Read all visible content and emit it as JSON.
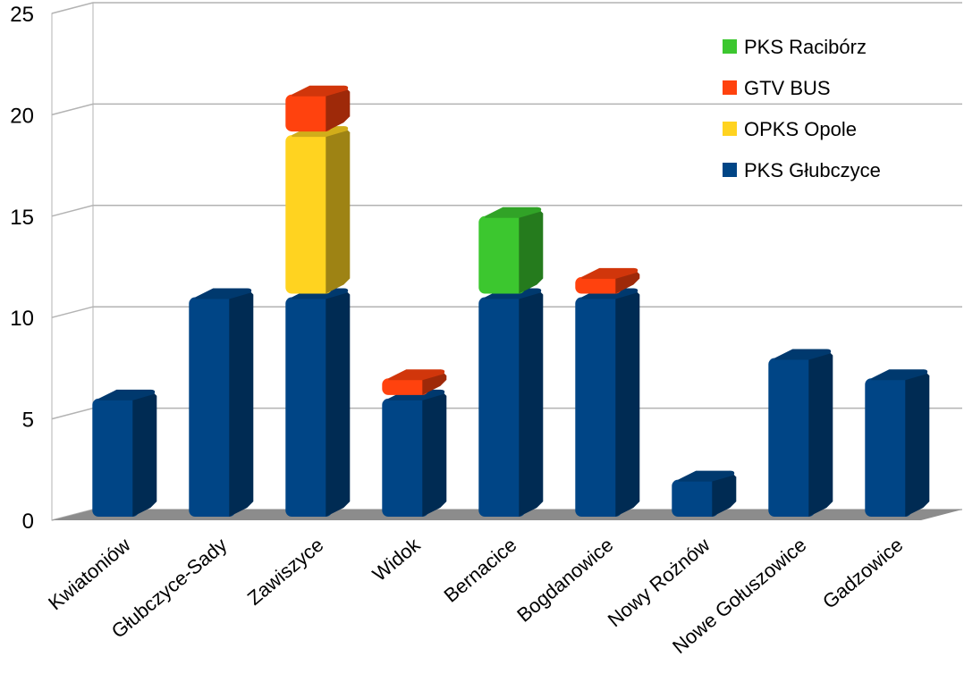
{
  "chart_data": {
    "type": "bar",
    "stacked": true,
    "three_d": true,
    "categories": [
      "Kwiatoniów",
      "Głubczyce-Sady",
      "Zawiszyce",
      "Widok",
      "Bernacice",
      "Bogdanowice",
      "Nowy Rożnów",
      "Nowe Gołuszowice",
      "Gadzowice"
    ],
    "series": [
      {
        "name": "PKS Głubczyce",
        "color": "#004586",
        "values": [
          6,
          11,
          11,
          6,
          11,
          11,
          2,
          8,
          7
        ]
      },
      {
        "name": "OPKS Opole",
        "color": "#ffd320",
        "values": [
          0,
          0,
          8,
          0,
          0,
          0,
          0,
          0,
          0
        ]
      },
      {
        "name": "GTV BUS",
        "color": "#ff420e",
        "values": [
          0,
          0,
          2,
          1,
          0,
          1,
          0,
          0,
          0
        ]
      },
      {
        "name": "PKS Racibórz",
        "color": "#3cc72f",
        "values": [
          0,
          0,
          0,
          0,
          4,
          0,
          0,
          0,
          0
        ]
      }
    ],
    "yticks": [
      "0",
      "5",
      "10",
      "15",
      "20",
      "25"
    ],
    "ylim": [
      0,
      25
    ],
    "grid": true,
    "legend": {
      "position": "top-right",
      "entries": [
        {
          "label": "PKS Racibórz",
          "color": "#3cc72f"
        },
        {
          "label": "GTV BUS",
          "color": "#ff420e"
        },
        {
          "label": "OPKS Opole",
          "color": "#ffd320"
        },
        {
          "label": "PKS Głubczyce",
          "color": "#004586"
        }
      ]
    },
    "title": "",
    "xlabel": "",
    "ylabel": ""
  }
}
